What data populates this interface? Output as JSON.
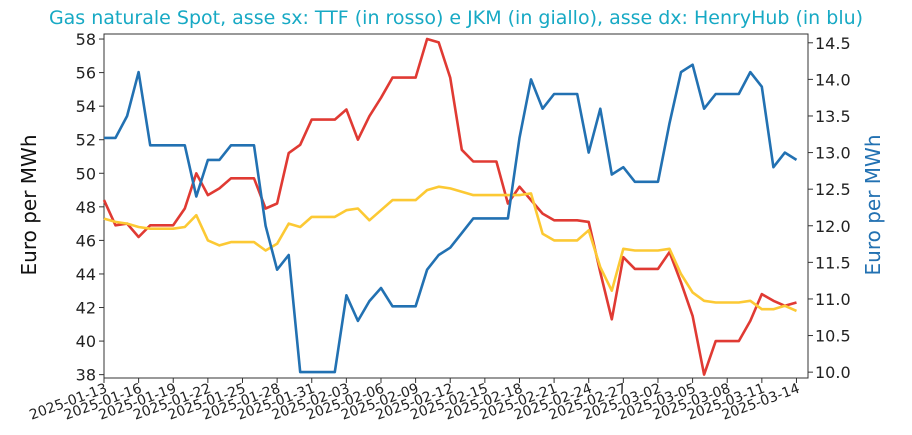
{
  "chart_data": {
    "type": "line",
    "title": "Gas naturale Spot, asse sx: TTF (in rosso) e JKM (in giallo), asse dx: HenryHub (in blu)",
    "title_color": "#17a9c4",
    "ylabel_left": "Euro per MWh",
    "ylabel_right": "Euro per MWh",
    "ylabel_right_color": "#2271b2",
    "ylim_left": [
      37.8,
      58.3
    ],
    "ylim_right": [
      9.92,
      14.62
    ],
    "xlim": [
      "2025-01-13",
      "2025-03-15"
    ],
    "yticks_left": [
      "38",
      "40",
      "42",
      "44",
      "46",
      "48",
      "50",
      "52",
      "54",
      "56",
      "58"
    ],
    "yticks_right": [
      "10.0",
      "10.5",
      "11.0",
      "11.5",
      "12.0",
      "12.5",
      "13.0",
      "13.5",
      "14.0",
      "14.5"
    ],
    "xticks": [
      "2025-01-13",
      "2025-01-16",
      "2025-01-19",
      "2025-01-22",
      "2025-01-25",
      "2025-01-28",
      "2025-01-31",
      "2025-02-03",
      "2025-02-06",
      "2025-02-09",
      "2025-02-12",
      "2025-02-15",
      "2025-02-18",
      "2025-02-21",
      "2025-02-24",
      "2025-02-27",
      "2025-03-02",
      "2025-03-05",
      "2025-03-08",
      "2025-03-11",
      "2025-03-14"
    ],
    "grid": false,
    "legend": "none",
    "series": [
      {
        "axis": "left",
        "color": "#e03a33",
        "points": [
          [
            "2025-01-13",
            48.4
          ],
          [
            "2025-01-14",
            46.9
          ],
          [
            "2025-01-15",
            47.0
          ],
          [
            "2025-01-16",
            46.2
          ],
          [
            "2025-01-17",
            46.9
          ],
          [
            "2025-01-18",
            46.9
          ],
          [
            "2025-01-19",
            46.9
          ],
          [
            "2025-01-20",
            47.9
          ],
          [
            "2025-01-21",
            50.0
          ],
          [
            "2025-01-22",
            48.7
          ],
          [
            "2025-01-23",
            49.1
          ],
          [
            "2025-01-24",
            49.7
          ],
          [
            "2025-01-25",
            49.7
          ],
          [
            "2025-01-26",
            49.7
          ],
          [
            "2025-01-27",
            47.9
          ],
          [
            "2025-01-28",
            48.2
          ],
          [
            "2025-01-29",
            51.2
          ],
          [
            "2025-01-30",
            51.7
          ],
          [
            "2025-01-31",
            53.2
          ],
          [
            "2025-02-01",
            53.2
          ],
          [
            "2025-02-02",
            53.2
          ],
          [
            "2025-02-03",
            53.8
          ],
          [
            "2025-02-04",
            52.0
          ],
          [
            "2025-02-05",
            53.4
          ],
          [
            "2025-02-06",
            54.5
          ],
          [
            "2025-02-07",
            55.7
          ],
          [
            "2025-02-08",
            55.7
          ],
          [
            "2025-02-09",
            55.7
          ],
          [
            "2025-02-10",
            58.0
          ],
          [
            "2025-02-11",
            57.8
          ],
          [
            "2025-02-12",
            55.7
          ],
          [
            "2025-02-13",
            51.4
          ],
          [
            "2025-02-14",
            50.7
          ],
          [
            "2025-02-15",
            50.7
          ],
          [
            "2025-02-16",
            50.7
          ],
          [
            "2025-02-17",
            48.2
          ],
          [
            "2025-02-18",
            49.2
          ],
          [
            "2025-02-19",
            48.4
          ],
          [
            "2025-02-20",
            47.6
          ],
          [
            "2025-02-21",
            47.2
          ],
          [
            "2025-02-22",
            47.2
          ],
          [
            "2025-02-23",
            47.2
          ],
          [
            "2025-02-24",
            47.1
          ],
          [
            "2025-02-25",
            44.1
          ],
          [
            "2025-02-26",
            41.3
          ],
          [
            "2025-02-27",
            45.0
          ],
          [
            "2025-02-28",
            44.3
          ],
          [
            "2025-03-01",
            44.3
          ],
          [
            "2025-03-02",
            44.3
          ],
          [
            "2025-03-03",
            45.3
          ],
          [
            "2025-03-04",
            43.5
          ],
          [
            "2025-03-05",
            41.5
          ],
          [
            "2025-03-06",
            38.0
          ],
          [
            "2025-03-07",
            40.0
          ],
          [
            "2025-03-08",
            40.0
          ],
          [
            "2025-03-09",
            40.0
          ],
          [
            "2025-03-10",
            41.2
          ],
          [
            "2025-03-11",
            42.8
          ],
          [
            "2025-03-12",
            42.4
          ],
          [
            "2025-03-13",
            42.1
          ],
          [
            "2025-03-14",
            42.3
          ]
        ]
      },
      {
        "axis": "left",
        "color": "#fcc934",
        "points": [
          [
            "2025-01-13",
            47.3
          ],
          [
            "2025-01-14",
            47.1
          ],
          [
            "2025-01-15",
            47.0
          ],
          [
            "2025-01-16",
            46.8
          ],
          [
            "2025-01-17",
            46.7
          ],
          [
            "2025-01-18",
            46.7
          ],
          [
            "2025-01-19",
            46.7
          ],
          [
            "2025-01-20",
            46.8
          ],
          [
            "2025-01-21",
            47.5
          ],
          [
            "2025-01-22",
            46.0
          ],
          [
            "2025-01-23",
            45.7
          ],
          [
            "2025-01-24",
            45.9
          ],
          [
            "2025-01-25",
            45.9
          ],
          [
            "2025-01-26",
            45.9
          ],
          [
            "2025-01-27",
            45.4
          ],
          [
            "2025-01-28",
            45.8
          ],
          [
            "2025-01-29",
            47.0
          ],
          [
            "2025-01-30",
            46.8
          ],
          [
            "2025-01-31",
            47.4
          ],
          [
            "2025-02-01",
            47.4
          ],
          [
            "2025-02-02",
            47.4
          ],
          [
            "2025-02-03",
            47.8
          ],
          [
            "2025-02-04",
            47.9
          ],
          [
            "2025-02-05",
            47.2
          ],
          [
            "2025-02-06",
            47.8
          ],
          [
            "2025-02-07",
            48.4
          ],
          [
            "2025-02-08",
            48.4
          ],
          [
            "2025-02-09",
            48.4
          ],
          [
            "2025-02-10",
            49.0
          ],
          [
            "2025-02-11",
            49.2
          ],
          [
            "2025-02-12",
            49.1
          ],
          [
            "2025-02-13",
            48.9
          ],
          [
            "2025-02-14",
            48.7
          ],
          [
            "2025-02-15",
            48.7
          ],
          [
            "2025-02-16",
            48.7
          ],
          [
            "2025-02-17",
            48.7
          ],
          [
            "2025-02-18",
            48.7
          ],
          [
            "2025-02-19",
            48.8
          ],
          [
            "2025-02-20",
            46.4
          ],
          [
            "2025-02-21",
            46.0
          ],
          [
            "2025-02-22",
            46.0
          ],
          [
            "2025-02-23",
            46.0
          ],
          [
            "2025-02-24",
            46.6
          ],
          [
            "2025-02-25",
            44.4
          ],
          [
            "2025-02-26",
            43.0
          ],
          [
            "2025-02-27",
            45.5
          ],
          [
            "2025-02-28",
            45.4
          ],
          [
            "2025-03-01",
            45.4
          ],
          [
            "2025-03-02",
            45.4
          ],
          [
            "2025-03-03",
            45.5
          ],
          [
            "2025-03-04",
            44.0
          ],
          [
            "2025-03-05",
            42.9
          ],
          [
            "2025-03-06",
            42.4
          ],
          [
            "2025-03-07",
            42.3
          ],
          [
            "2025-03-08",
            42.3
          ],
          [
            "2025-03-09",
            42.3
          ],
          [
            "2025-03-10",
            42.4
          ],
          [
            "2025-03-11",
            41.9
          ],
          [
            "2025-03-12",
            41.9
          ],
          [
            "2025-03-13",
            42.1
          ],
          [
            "2025-03-14",
            41.8
          ]
        ]
      },
      {
        "axis": "right",
        "color": "#2271b2",
        "points": [
          [
            "2025-01-13",
            13.2
          ],
          [
            "2025-01-14",
            13.2
          ],
          [
            "2025-01-15",
            13.5
          ],
          [
            "2025-01-16",
            14.1
          ],
          [
            "2025-01-17",
            13.1
          ],
          [
            "2025-01-18",
            13.1
          ],
          [
            "2025-01-19",
            13.1
          ],
          [
            "2025-01-20",
            13.1
          ],
          [
            "2025-01-21",
            12.4
          ],
          [
            "2025-01-22",
            12.9
          ],
          [
            "2025-01-23",
            12.9
          ],
          [
            "2025-01-24",
            13.1
          ],
          [
            "2025-01-25",
            13.1
          ],
          [
            "2025-01-26",
            13.1
          ],
          [
            "2025-01-27",
            12.0
          ],
          [
            "2025-01-28",
            11.4
          ],
          [
            "2025-01-29",
            11.6
          ],
          [
            "2025-01-30",
            10.0
          ],
          [
            "2025-01-31",
            10.0
          ],
          [
            "2025-02-01",
            10.0
          ],
          [
            "2025-02-02",
            10.0
          ],
          [
            "2025-02-03",
            11.05
          ],
          [
            "2025-02-04",
            10.7
          ],
          [
            "2025-02-05",
            10.97
          ],
          [
            "2025-02-06",
            11.15
          ],
          [
            "2025-02-07",
            10.9
          ],
          [
            "2025-02-08",
            10.9
          ],
          [
            "2025-02-09",
            10.9
          ],
          [
            "2025-02-10",
            11.4
          ],
          [
            "2025-02-11",
            11.6
          ],
          [
            "2025-02-12",
            11.7
          ],
          [
            "2025-02-13",
            11.9
          ],
          [
            "2025-02-14",
            12.1
          ],
          [
            "2025-02-15",
            12.1
          ],
          [
            "2025-02-16",
            12.1
          ],
          [
            "2025-02-17",
            12.1
          ],
          [
            "2025-02-18",
            13.2
          ],
          [
            "2025-02-19",
            14.0
          ],
          [
            "2025-02-20",
            13.6
          ],
          [
            "2025-02-21",
            13.8
          ],
          [
            "2025-02-22",
            13.8
          ],
          [
            "2025-02-23",
            13.8
          ],
          [
            "2025-02-24",
            13.0
          ],
          [
            "2025-02-25",
            13.6
          ],
          [
            "2025-02-26",
            12.7
          ],
          [
            "2025-02-27",
            12.8
          ],
          [
            "2025-02-28",
            12.6
          ],
          [
            "2025-03-01",
            12.6
          ],
          [
            "2025-03-02",
            12.6
          ],
          [
            "2025-03-03",
            13.4
          ],
          [
            "2025-03-04",
            14.1
          ],
          [
            "2025-03-05",
            14.2
          ],
          [
            "2025-03-06",
            13.6
          ],
          [
            "2025-03-07",
            13.8
          ],
          [
            "2025-03-08",
            13.8
          ],
          [
            "2025-03-09",
            13.8
          ],
          [
            "2025-03-10",
            14.1
          ],
          [
            "2025-03-11",
            13.9
          ],
          [
            "2025-03-12",
            12.8
          ],
          [
            "2025-03-13",
            13.0
          ],
          [
            "2025-03-14",
            12.9
          ]
        ]
      }
    ]
  }
}
